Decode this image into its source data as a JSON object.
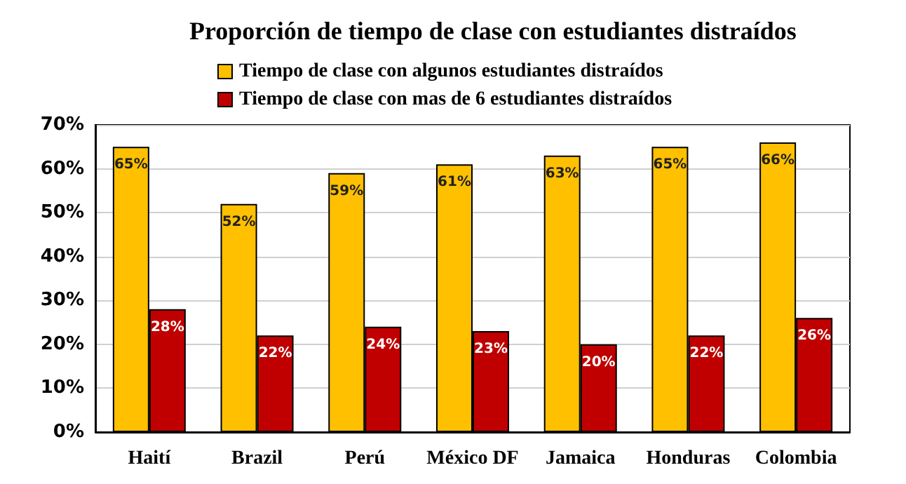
{
  "chart_data": {
    "type": "bar",
    "title": "Proporción de tiempo de clase con estudiantes distraídos",
    "categories": [
      "Haití",
      "Brazil",
      "Perú",
      "México DF",
      "Jamaica",
      "Honduras",
      "Colombia"
    ],
    "series": [
      {
        "name": "Tiempo de clase con algunos estudiantes distraídos",
        "color": "#ffc000",
        "values": [
          65,
          52,
          59,
          61,
          63,
          65,
          66
        ],
        "value_labels": [
          "65%",
          "52%",
          "59%",
          "61%",
          "63%",
          "65%",
          "66%"
        ]
      },
      {
        "name": "Tiempo de clase con mas de 6 estudiantes distraídos",
        "color": "#c00000",
        "values": [
          28,
          22,
          24,
          23,
          20,
          22,
          26
        ],
        "value_labels": [
          "28%",
          "22%",
          "24%",
          "23%",
          "20%",
          "22%",
          "26%"
        ]
      }
    ],
    "ylim": [
      0,
      70
    ],
    "yticks": [
      {
        "value": 0,
        "label": "0%"
      },
      {
        "value": 10,
        "label": "10%"
      },
      {
        "value": 20,
        "label": "20%"
      },
      {
        "value": 30,
        "label": "30%"
      },
      {
        "value": 40,
        "label": "40%"
      },
      {
        "value": 50,
        "label": "50%"
      },
      {
        "value": 60,
        "label": "60%"
      },
      {
        "value": 70,
        "label": "70%"
      }
    ],
    "grid": "y",
    "legend": "top"
  }
}
